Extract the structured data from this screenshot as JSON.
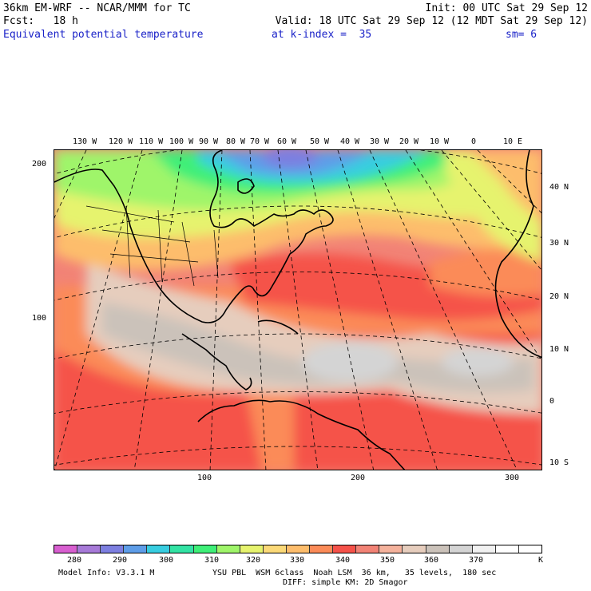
{
  "header": {
    "line1_left": "36km EM-WRF -- NCAR/MMM for TC",
    "line1_right": "Init: 00 UTC Sat 29 Sep 12",
    "line2_left": "Fcst:   18 h",
    "line2_right": "Valid: 18 UTC Sat 29 Sep 12 (12 MDT Sat 29 Sep 12)",
    "field": "Equivalent potential temperature",
    "level": "at k-index =  35",
    "smoothing": "sm= 6"
  },
  "top_longitudes": [
    "130 W",
    "120 W",
    "110 W",
    "100 W",
    "90 W",
    "80 W",
    "70 W",
    "60 W",
    "50 W",
    "40 W",
    "30 W",
    "20 W",
    "10 W",
    "0",
    "10 E"
  ],
  "right_latitudes": [
    "40 N",
    "30 N",
    "20 N",
    "10 N",
    "0",
    "10 S"
  ],
  "left_grid_labels": [
    "200",
    "100"
  ],
  "bottom_grid_labels": [
    "100",
    "200",
    "300"
  ],
  "colorbar": {
    "colors": [
      "#d85fd0",
      "#a77ad8",
      "#7d7fe0",
      "#5e9de8",
      "#38cde0",
      "#33e3a4",
      "#3fef78",
      "#9ff56a",
      "#e6f36e",
      "#fbd978",
      "#fdbd6c",
      "#fb8b58",
      "#f5524a",
      "#f28376",
      "#f4b29c",
      "#e6cdbd",
      "#cbc2ba",
      "#d4d4d4",
      "#f1f1f1",
      "#ffffff",
      "#ffffff"
    ],
    "labels": [
      "280",
      "290",
      "300",
      "310",
      "320",
      "330",
      "340",
      "350",
      "360",
      "370",
      "K"
    ]
  },
  "footer": {
    "model_info": "Model Info: V3.3.1 M",
    "physics": "YSU PBL  WSM 6class  Noah LSM  36 km,   35 levels,  180 sec",
    "diffusion": "DIFF: simple KM: 2D Smagor"
  }
}
